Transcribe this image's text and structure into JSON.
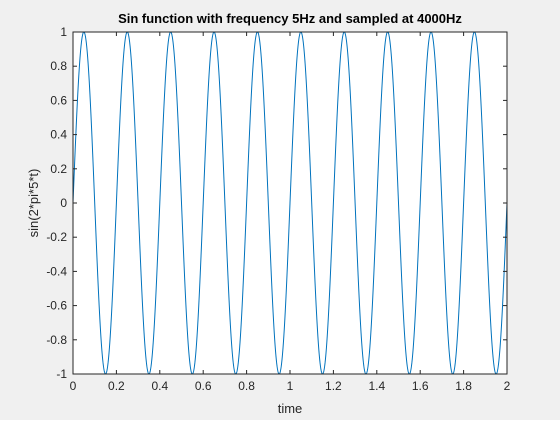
{
  "chart_data": {
    "type": "line",
    "title": "Sin function with frequency 5Hz and sampled at 4000Hz",
    "xlabel": "time",
    "ylabel": "sin(2*pi*5*t)",
    "xlim": [
      0,
      2
    ],
    "ylim": [
      -1,
      1
    ],
    "xticks": [
      "0",
      "0.2",
      "0.4",
      "0.6",
      "0.8",
      "1",
      "1.2",
      "1.4",
      "1.6",
      "1.8",
      "2"
    ],
    "yticks": [
      "-1",
      "-0.8",
      "-0.6",
      "-0.4",
      "-0.2",
      "0",
      "0.2",
      "0.4",
      "0.6",
      "0.8",
      "1"
    ],
    "grid": false,
    "series": [
      {
        "function": "sin(2*pi*5*t)",
        "frequency_hz": 5,
        "sample_rate_hz": 4000,
        "t_start": 0,
        "t_end": 2,
        "color": "#0072bd"
      }
    ]
  },
  "colors": {
    "figure_background": "#f0f0f0",
    "axes_background": "#ffffff",
    "axes_line": "#262626",
    "series_color": "#0072bd"
  }
}
